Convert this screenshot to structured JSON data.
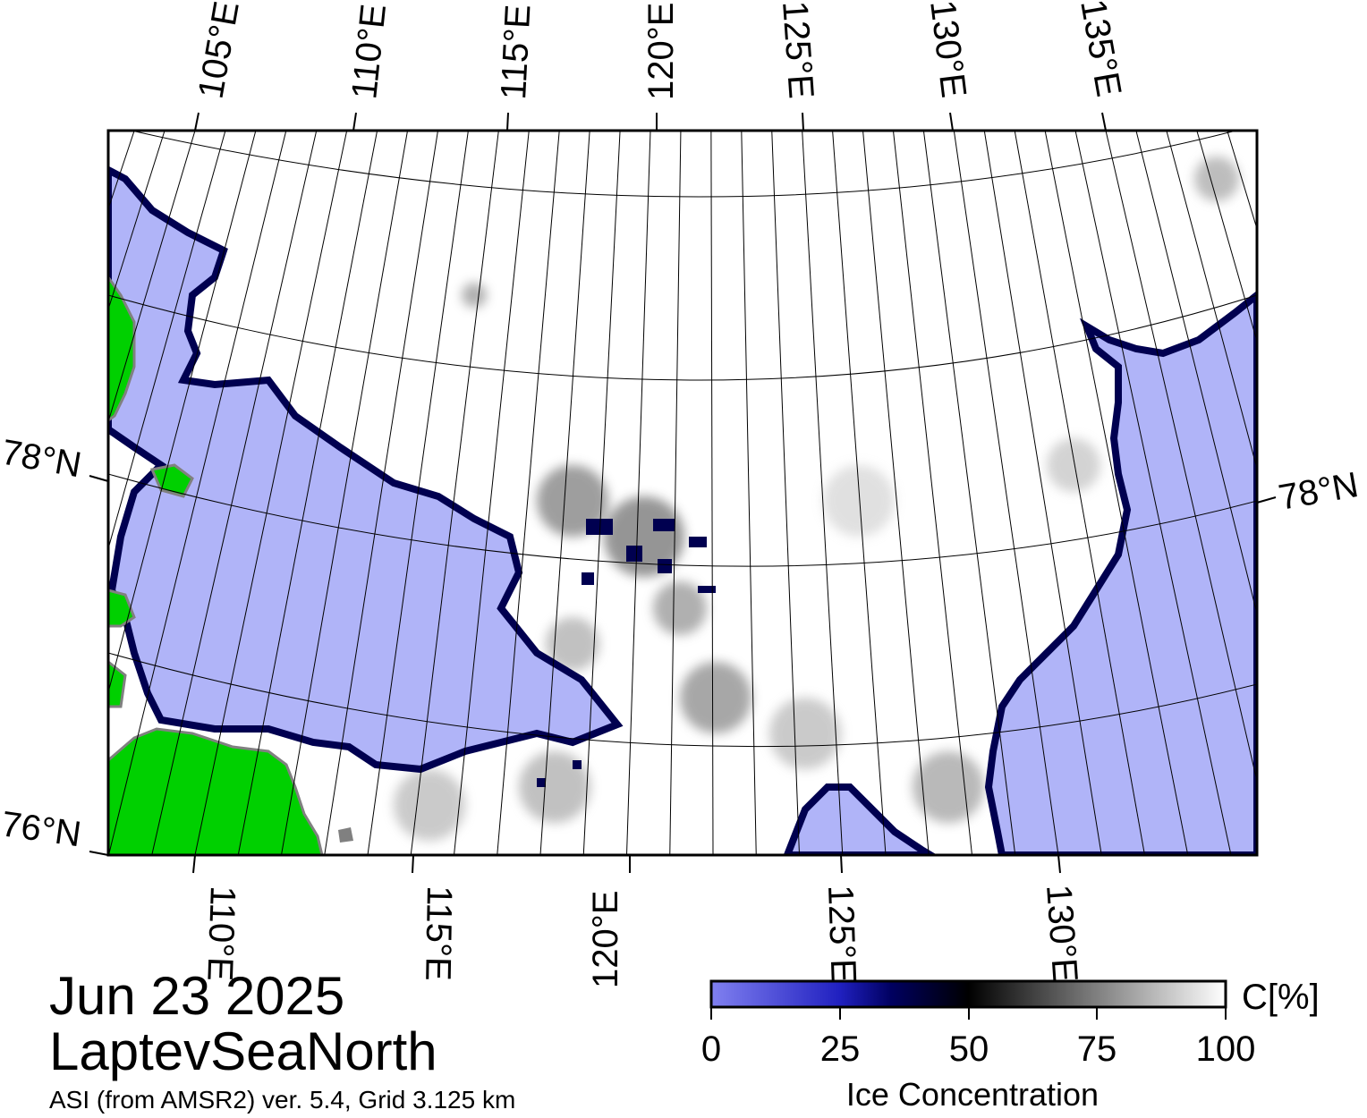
{
  "map": {
    "date": "Jun 23 2025",
    "region": "LaptevSeaNorth",
    "source": "ASI (from AMSR2) ver. 5.4,  Grid 3.125 km",
    "top_lon_labels": [
      "105°E",
      "110°E",
      "115°E",
      "120°E",
      "125°E",
      "130°E",
      "135°E"
    ],
    "bottom_lon_labels": [
      "110°E",
      "115°E",
      "120°E",
      "125°E",
      "130°E"
    ],
    "lat_labels": {
      "left_78": "78°N",
      "right_78": "78°N",
      "left_76": "76°N"
    },
    "colors": {
      "open_water": "#b0b4f8",
      "land": "#00d000",
      "land_border": "#808080",
      "ice_full": "#ffffff",
      "ice_edge": "#000050",
      "graticule": "#000000"
    }
  },
  "colorbar": {
    "title": "Ice Concentration",
    "unit": "C[%]",
    "ticks": [
      "0",
      "25",
      "50",
      "75",
      "100"
    ],
    "stops": [
      "#8080f0",
      "#2020c0",
      "#000060",
      "#000000",
      "#808080",
      "#ffffff"
    ]
  }
}
